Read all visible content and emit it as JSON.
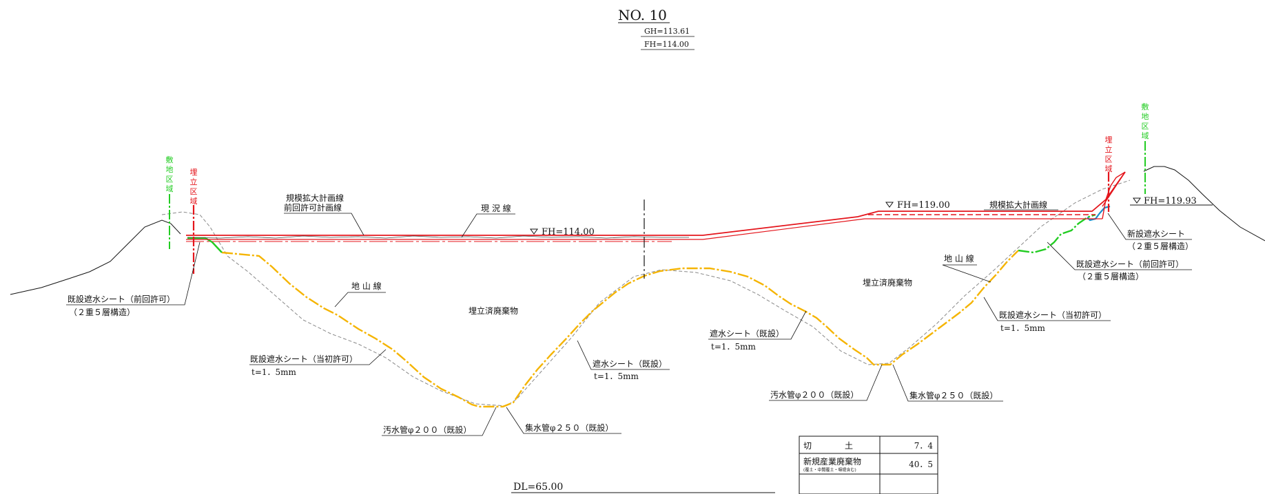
{
  "title": {
    "section_no": "NO. 10",
    "gh": "GH=113.61",
    "fh": "FH=114.00"
  },
  "levels": {
    "fh_center": "FH=114.00",
    "fh_right_plan": "FH=119.00",
    "fh_right_edge": "FH=119.93",
    "datum": "DL=65.00"
  },
  "boundaries": {
    "site_area": [
      "敷",
      "地",
      "区",
      "域"
    ],
    "landfill_area": [
      "埋",
      "立",
      "区",
      "域"
    ]
  },
  "labels": {
    "plan_line_expansion": "規模拡大計画線",
    "plan_line_previous": "前回許可計画線",
    "current_line": "現 況 線",
    "ground_line": "地 山 線",
    "waste_center": "埋立済廃棄物",
    "waste_right": "埋立済廃棄物",
    "sheet_prev_left_1": "既設遮水シート（前回許可）",
    "sheet_prev_left_2": "（２重５層構造）",
    "sheet_initial_left_1": "既設遮水シート（当初許可）",
    "sheet_initial_left_2": "t=1．5mm",
    "sheet_existing_mid_1": "遮水シート（既設）",
    "sheet_existing_mid_2": "t=1．5mm",
    "sheet_existing_right_1": "遮水シート（既設）",
    "sheet_existing_right_2": "t=1．5mm",
    "sewer_left": "汚水管φ２００（既設）",
    "collector_left": "集水管φ２５０（既設）",
    "sewer_right": "汚水管φ２００（既設）",
    "collector_right": "集水管φ２５０（既設）",
    "plan_line_expansion_right": "規模拡大計画線",
    "ground_line_right": "地 山 線",
    "new_sheet_1": "新設遮水シート",
    "new_sheet_2": "（２重５層構造）",
    "sheet_prev_right_1": "既設遮水シート（前回許可）",
    "sheet_prev_right_2": "（２重５層構造）",
    "sheet_initial_right_1": "既設遮水シート（当初許可）",
    "sheet_initial_right_2": "t=1．5mm"
  },
  "volume_table": {
    "rows": [
      {
        "label": "切　　　　土",
        "sub": "",
        "value": "7．4"
      },
      {
        "label": "新規産業廃棄物",
        "sub": "(覆土・中間覆土・堰堤含む)",
        "value": "40．5"
      },
      {
        "label": "",
        "sub": "",
        "value": ""
      }
    ]
  },
  "colors": {
    "plan_red": "#e4141b",
    "liner_orange": "#f5b400",
    "boundary_green": "#22cc22",
    "ground_gray": "#888888"
  }
}
